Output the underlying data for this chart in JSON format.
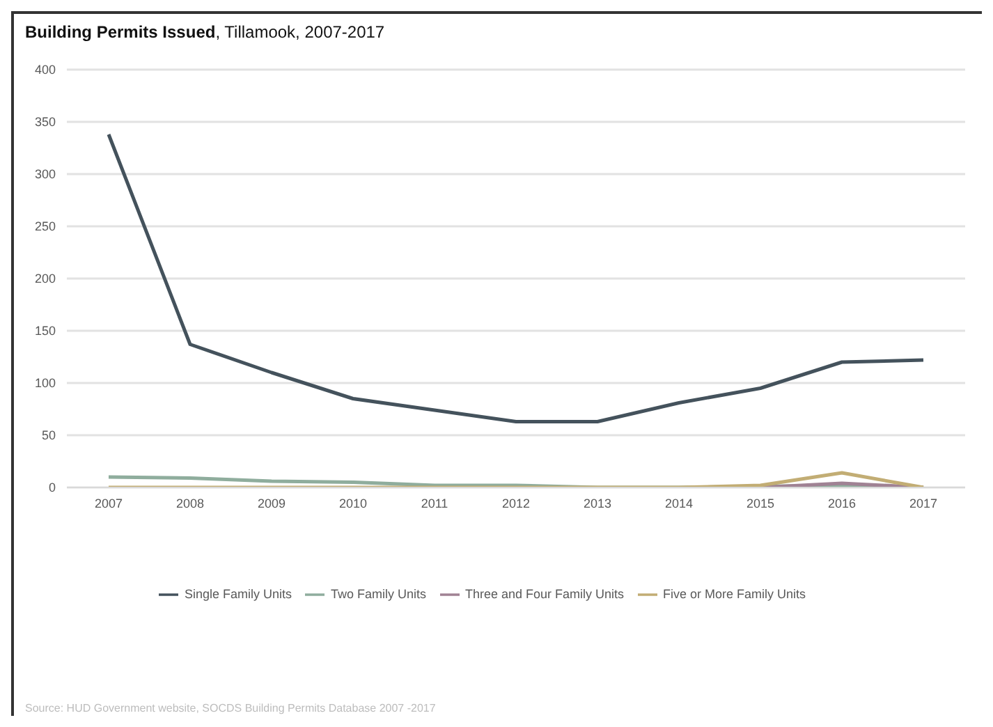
{
  "chart_data": {
    "type": "line",
    "title": "Building Permits Issued, Tillamook, 2007-2017",
    "categories": [
      "2007",
      "2008",
      "2009",
      "2010",
      "2011",
      "2012",
      "2013",
      "2014",
      "2015",
      "2016",
      "2017"
    ],
    "series": [
      {
        "name": "Single Family Units",
        "color": "#44525c",
        "values": [
          338,
          137,
          110,
          85,
          74,
          63,
          63,
          81,
          95,
          120,
          122
        ]
      },
      {
        "name": "Two Family Units",
        "color": "#8fad9d",
        "values": [
          10,
          9,
          6,
          5,
          2,
          2,
          0,
          0,
          1,
          2,
          0
        ]
      },
      {
        "name": "Three and Four Family Units",
        "color": "#a08294",
        "values": [
          null,
          null,
          null,
          null,
          null,
          null,
          null,
          null,
          0,
          4,
          0
        ]
      },
      {
        "name": "Five or More Family Units",
        "color": "#c2ad74",
        "values": [
          0,
          0,
          0,
          0,
          0,
          0,
          0,
          0,
          2,
          14,
          0
        ]
      }
    ],
    "ylim": [
      0,
      400
    ],
    "yticks": [
      0,
      50,
      100,
      150,
      200,
      250,
      300,
      350,
      400
    ],
    "grid": "y",
    "legend": "bottom",
    "marker": "none",
    "line_style": "solid",
    "annotations": [
      "Source: HUD Government website, SOCDS Building Permits Database 2007 -2017"
    ]
  }
}
